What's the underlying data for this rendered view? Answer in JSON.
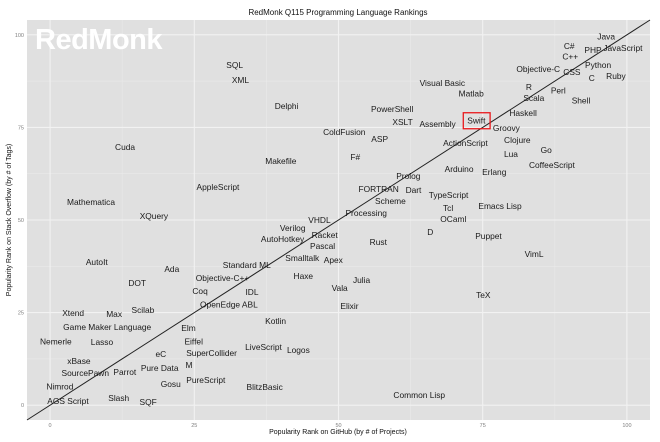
{
  "chart_data": {
    "type": "scatter",
    "title": "RedMonk Q115 Programming Language Rankings",
    "xlabel": "Popularity Rank on GitHub (by # of Projects)",
    "ylabel": "Popularity Rank on Stack Overflow (by # of Tags)",
    "xlim": [
      -4,
      104
    ],
    "ylim": [
      -4,
      104
    ],
    "xticks": [
      0,
      25,
      50,
      75,
      100
    ],
    "yticks": [
      0,
      25,
      50,
      75,
      100
    ],
    "grid": true,
    "reference_line": "y = x",
    "watermark": "RedMonk",
    "highlight": {
      "label": "Swift",
      "color": "#e8191c"
    },
    "colors": {
      "panel": "#e0e0e0",
      "grid": "#f2f2f2",
      "text": "#1a1a1a"
    },
    "points": [
      {
        "label": "Java",
        "x": 96.4,
        "y": 99.5
      },
      {
        "label": "JavaScript",
        "x": 99.3,
        "y": 97.8
      },
      {
        "label": "PHP",
        "x": 96.2,
        "y": 95.9
      },
      {
        "label": "Python",
        "x": 95.0,
        "y": 94.6
      },
      {
        "label": "C++",
        "x": 93.3,
        "y": 94.1
      },
      {
        "label": "C#",
        "x": 90.0,
        "y": 97.0
      },
      {
        "label": "CSS",
        "x": 91.5,
        "y": 92.7
      },
      {
        "label": "Objective-C",
        "x": 86.7,
        "y": 90.8
      },
      {
        "label": "C",
        "x": 93.9,
        "y": 89.7
      },
      {
        "label": "Ruby",
        "x": 98.1,
        "y": 88.9
      },
      {
        "label": "R",
        "x": 83.0,
        "y": 85.9
      },
      {
        "label": "Perl",
        "x": 88.1,
        "y": 84.9
      },
      {
        "label": "Scala",
        "x": 84.9,
        "y": 83.0
      },
      {
        "label": "Shell",
        "x": 91.0,
        "y": 82.2
      },
      {
        "label": "Visual Basic",
        "x": 68.0,
        "y": 87.0
      },
      {
        "label": "Matlab",
        "x": 73.0,
        "y": 84.1
      },
      {
        "label": "Haskell",
        "x": 82.0,
        "y": 78.9
      },
      {
        "label": "PowerShell",
        "x": 59.3,
        "y": 80.0
      },
      {
        "label": "XSLT",
        "x": 61.1,
        "y": 77.8
      },
      {
        "label": "Assembly",
        "x": 65.1,
        "y": 75.9
      },
      {
        "label": "Swift",
        "x": 73.9,
        "y": 76.8
      },
      {
        "label": "Groovy",
        "x": 79.1,
        "y": 74.9
      },
      {
        "label": "Clojure",
        "x": 81.0,
        "y": 73.0
      },
      {
        "label": "ColdFusion",
        "x": 51.0,
        "y": 73.8
      },
      {
        "label": "ASP",
        "x": 56.1,
        "y": 71.9
      },
      {
        "label": "ActionScript",
        "x": 72.0,
        "y": 70.8
      },
      {
        "label": "Lua",
        "x": 79.9,
        "y": 67.8
      },
      {
        "label": "Go",
        "x": 86.0,
        "y": 68.9
      },
      {
        "label": "F#",
        "x": 52.9,
        "y": 67.0
      },
      {
        "label": "CoffeeScript",
        "x": 87.0,
        "y": 64.9
      },
      {
        "label": "Arduino",
        "x": 70.9,
        "y": 63.8
      },
      {
        "label": "Erlang",
        "x": 77.0,
        "y": 63.0
      },
      {
        "label": "Prolog",
        "x": 62.1,
        "y": 61.9
      },
      {
        "label": "Dart",
        "x": 63.0,
        "y": 60.8
      },
      {
        "label": "FORTRAN",
        "x": 58.0,
        "y": 59.7
      },
      {
        "label": "Scheme",
        "x": 59.0,
        "y": 57.8
      },
      {
        "label": "TypeScript",
        "x": 67.0,
        "y": 56.8
      },
      {
        "label": "Tcl",
        "x": 69.0,
        "y": 55.9
      },
      {
        "label": "OCaml",
        "x": 69.9,
        "y": 53.0
      },
      {
        "label": "Emacs Lisp",
        "x": 78.0,
        "y": 53.8
      },
      {
        "label": "Processing",
        "x": 54.8,
        "y": 51.9
      },
      {
        "label": "D",
        "x": 65.9,
        "y": 46.8
      },
      {
        "label": "Puppet",
        "x": 76.0,
        "y": 45.7
      },
      {
        "label": "Rust",
        "x": 56.9,
        "y": 44.1
      },
      {
        "label": "VimL",
        "x": 83.9,
        "y": 40.8
      },
      {
        "label": "VHDL",
        "x": 46.7,
        "y": 50.0
      },
      {
        "label": "Racket",
        "x": 47.6,
        "y": 48.6
      },
      {
        "label": "Verilog",
        "x": 43.1,
        "y": 47.8
      },
      {
        "label": "AutoHotkey",
        "x": 40.3,
        "y": 44.9
      },
      {
        "label": "Pascal",
        "x": 46.2,
        "y": 43.0
      },
      {
        "label": "Apex",
        "x": 49.1,
        "y": 41.9
      },
      {
        "label": "Smalltalk",
        "x": 45.8,
        "y": 39.7
      },
      {
        "label": "Standard ML",
        "x": 34.1,
        "y": 37.8
      },
      {
        "label": "Objective-C++",
        "x": 29.9,
        "y": 35.7
      },
      {
        "label": "Haxe",
        "x": 43.9,
        "y": 34.9
      },
      {
        "label": "Julia",
        "x": 54.0,
        "y": 33.8
      },
      {
        "label": "Vala",
        "x": 50.2,
        "y": 31.6
      },
      {
        "label": "TeX",
        "x": 75.1,
        "y": 29.7
      },
      {
        "label": "Elixir",
        "x": 51.9,
        "y": 26.8
      },
      {
        "label": "Coq",
        "x": 26.0,
        "y": 30.8
      },
      {
        "label": "OpenEdge ABL",
        "x": 31.0,
        "y": 28.6
      },
      {
        "label": "IDL",
        "x": 35.0,
        "y": 27.8
      },
      {
        "label": "Kotlin",
        "x": 39.1,
        "y": 22.7
      },
      {
        "label": "Cuda",
        "x": 13.0,
        "y": 69.7
      },
      {
        "label": "Mathematica",
        "x": 7.1,
        "y": 54.9
      },
      {
        "label": "XQuery",
        "x": 18.0,
        "y": 51.1
      },
      {
        "label": "AppleScript",
        "x": 29.1,
        "y": 58.9
      },
      {
        "label": "Makefile",
        "x": 40.0,
        "y": 65.9
      },
      {
        "label": "Delphi",
        "x": 41.0,
        "y": 80.8
      },
      {
        "label": "SQL",
        "x": 32.0,
        "y": 91.9
      },
      {
        "label": "XML",
        "x": 33.0,
        "y": 87.8
      },
      {
        "label": "AutoIt",
        "x": 8.1,
        "y": 38.6
      },
      {
        "label": "Ada",
        "x": 21.1,
        "y": 36.8
      },
      {
        "label": "DOT",
        "x": 15.1,
        "y": 33.0
      },
      {
        "label": "Scilab",
        "x": 16.1,
        "y": 25.7
      },
      {
        "label": "Xtend",
        "x": 4.0,
        "y": 24.9
      },
      {
        "label": "Game Maker Language",
        "x": 9.9,
        "y": 23.8
      },
      {
        "label": "Max",
        "x": 11.1,
        "y": 21.9
      },
      {
        "label": "Lasso",
        "x": 9.0,
        "y": 19.7
      },
      {
        "label": "Nemerle",
        "x": 1.0,
        "y": 18.6
      },
      {
        "label": "Elm",
        "x": 24.0,
        "y": 20.8
      },
      {
        "label": "Eiffel",
        "x": 24.9,
        "y": 18.6
      },
      {
        "label": "SuperCollider",
        "x": 28.0,
        "y": 16.8
      },
      {
        "label": "LiveScript",
        "x": 37.0,
        "y": 15.7
      },
      {
        "label": "Logos",
        "x": 42.0,
        "y": 14.9
      },
      {
        "label": "eC",
        "x": 19.2,
        "y": 13.8
      },
      {
        "label": "Pure Data",
        "x": 19.0,
        "y": 12.7
      },
      {
        "label": "M",
        "x": 22.0,
        "y": 10.8
      },
      {
        "label": "xBase",
        "x": 5.0,
        "y": 11.9
      },
      {
        "label": "SourcePawn",
        "x": 6.1,
        "y": 10.0
      },
      {
        "label": "Nimrod",
        "x": 1.7,
        "y": 7.8
      },
      {
        "label": "Parrot",
        "x": 14.0,
        "y": 8.9
      },
      {
        "label": "PureScript",
        "x": 27.0,
        "y": 6.8
      },
      {
        "label": "Gosu",
        "x": 23.0,
        "y": 5.7
      },
      {
        "label": "BlitzBasic",
        "x": 37.2,
        "y": 4.9
      },
      {
        "label": "AGS Script",
        "x": 3.1,
        "y": 3.8
      },
      {
        "label": "Slash",
        "x": 11.9,
        "y": 1.9
      },
      {
        "label": "SQF",
        "x": 17.0,
        "y": 0.8
      },
      {
        "label": "Common Lisp",
        "x": 64.0,
        "y": 2.7
      }
    ]
  }
}
